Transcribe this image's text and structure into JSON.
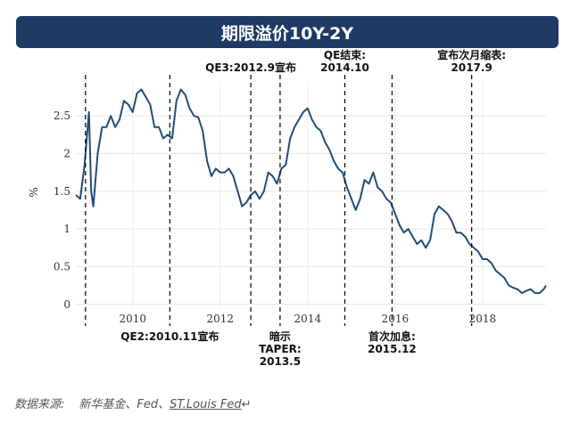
{
  "title": "期限溢价10Y-2Y",
  "source": {
    "prefix": "数据来源:",
    "names": "新华基金、Fed、",
    "link": "ST.Louis Fed",
    "tail": "↵"
  },
  "chart_data": {
    "type": "line",
    "title": "期限溢价10Y-2Y",
    "ylabel": "%",
    "xlim": [
      2008.7,
      2019.45
    ],
    "ylim": [
      -0.05,
      2.95
    ],
    "grid": true,
    "x_ticks": [
      2010,
      2012,
      2014,
      2016,
      2018
    ],
    "x_tick_labels": [
      "2010",
      "2012",
      "2014",
      "2016",
      "2018"
    ],
    "y_ticks": [
      0,
      0.5,
      1,
      1.5,
      2,
      2.5
    ],
    "y_tick_labels": [
      "0",
      "0.5",
      "1",
      "1.5",
      "2",
      "2.5"
    ],
    "series": [
      {
        "color": "#1f4e79",
        "x": [
          2008.7,
          2008.8,
          2008.9,
          2009.0,
          2009.05,
          2009.1,
          2009.2,
          2009.3,
          2009.4,
          2009.5,
          2009.6,
          2009.7,
          2009.8,
          2009.9,
          2010.0,
          2010.1,
          2010.2,
          2010.3,
          2010.4,
          2010.5,
          2010.6,
          2010.7,
          2010.8,
          2010.9,
          2011.0,
          2011.1,
          2011.2,
          2011.3,
          2011.4,
          2011.5,
          2011.6,
          2011.7,
          2011.8,
          2011.9,
          2012.0,
          2012.1,
          2012.2,
          2012.3,
          2012.4,
          2012.5,
          2012.6,
          2012.7,
          2012.8,
          2012.9,
          2013.0,
          2013.1,
          2013.2,
          2013.3,
          2013.4,
          2013.5,
          2013.6,
          2013.7,
          2013.8,
          2013.9,
          2014.0,
          2014.1,
          2014.2,
          2014.3,
          2014.4,
          2014.5,
          2014.6,
          2014.7,
          2014.8,
          2014.9,
          2015.0,
          2015.1,
          2015.2,
          2015.3,
          2015.4,
          2015.5,
          2015.6,
          2015.7,
          2015.8,
          2015.9,
          2016.0,
          2016.1,
          2016.2,
          2016.3,
          2016.4,
          2016.5,
          2016.6,
          2016.7,
          2016.8,
          2016.9,
          2017.0,
          2017.1,
          2017.2,
          2017.3,
          2017.4,
          2017.5,
          2017.6,
          2017.7,
          2017.8,
          2017.9,
          2018.0,
          2018.1,
          2018.2,
          2018.3,
          2018.4,
          2018.5,
          2018.6,
          2018.7,
          2018.8,
          2018.9,
          2019.0,
          2019.1,
          2019.2,
          2019.3,
          2019.4,
          2019.45
        ],
        "y": [
          1.45,
          1.4,
          1.85,
          2.55,
          1.5,
          1.3,
          2.0,
          2.35,
          2.35,
          2.5,
          2.35,
          2.45,
          2.7,
          2.65,
          2.55,
          2.8,
          2.85,
          2.75,
          2.65,
          2.35,
          2.35,
          2.2,
          2.25,
          2.2,
          2.7,
          2.85,
          2.78,
          2.6,
          2.5,
          2.48,
          2.3,
          1.9,
          1.7,
          1.8,
          1.75,
          1.75,
          1.8,
          1.7,
          1.5,
          1.3,
          1.35,
          1.45,
          1.5,
          1.4,
          1.5,
          1.75,
          1.7,
          1.6,
          1.8,
          1.85,
          2.2,
          2.35,
          2.45,
          2.55,
          2.6,
          2.45,
          2.35,
          2.3,
          2.15,
          2.05,
          1.9,
          1.8,
          1.75,
          1.55,
          1.4,
          1.25,
          1.4,
          1.65,
          1.6,
          1.75,
          1.55,
          1.5,
          1.4,
          1.35,
          1.2,
          1.05,
          0.95,
          1.0,
          0.9,
          0.8,
          0.85,
          0.75,
          0.85,
          1.2,
          1.3,
          1.25,
          1.2,
          1.1,
          0.95,
          0.95,
          0.9,
          0.8,
          0.75,
          0.7,
          0.6,
          0.6,
          0.55,
          0.45,
          0.4,
          0.35,
          0.25,
          0.22,
          0.2,
          0.15,
          0.18,
          0.2,
          0.15,
          0.15,
          0.2,
          0.25
        ]
      }
    ],
    "event_lines": [
      {
        "x": 2008.92,
        "label": ""
      },
      {
        "x": 2010.85,
        "label": "QE2:2010.11宣布",
        "label_pos": "below"
      },
      {
        "x": 2012.7,
        "label": "QE3:2012.9宣布",
        "label_pos": "above"
      },
      {
        "x": 2013.37,
        "label": "暗示\nTAPER:\n2013.5",
        "label_pos": "below"
      },
      {
        "x": 2014.85,
        "label": "QE结束:\n2014.10",
        "label_pos": "above"
      },
      {
        "x": 2015.93,
        "label": "首次加息:\n2015.12",
        "label_pos": "below"
      },
      {
        "x": 2017.75,
        "label": "宣布次月缩表:\n2017.9",
        "label_pos": "above"
      }
    ]
  }
}
